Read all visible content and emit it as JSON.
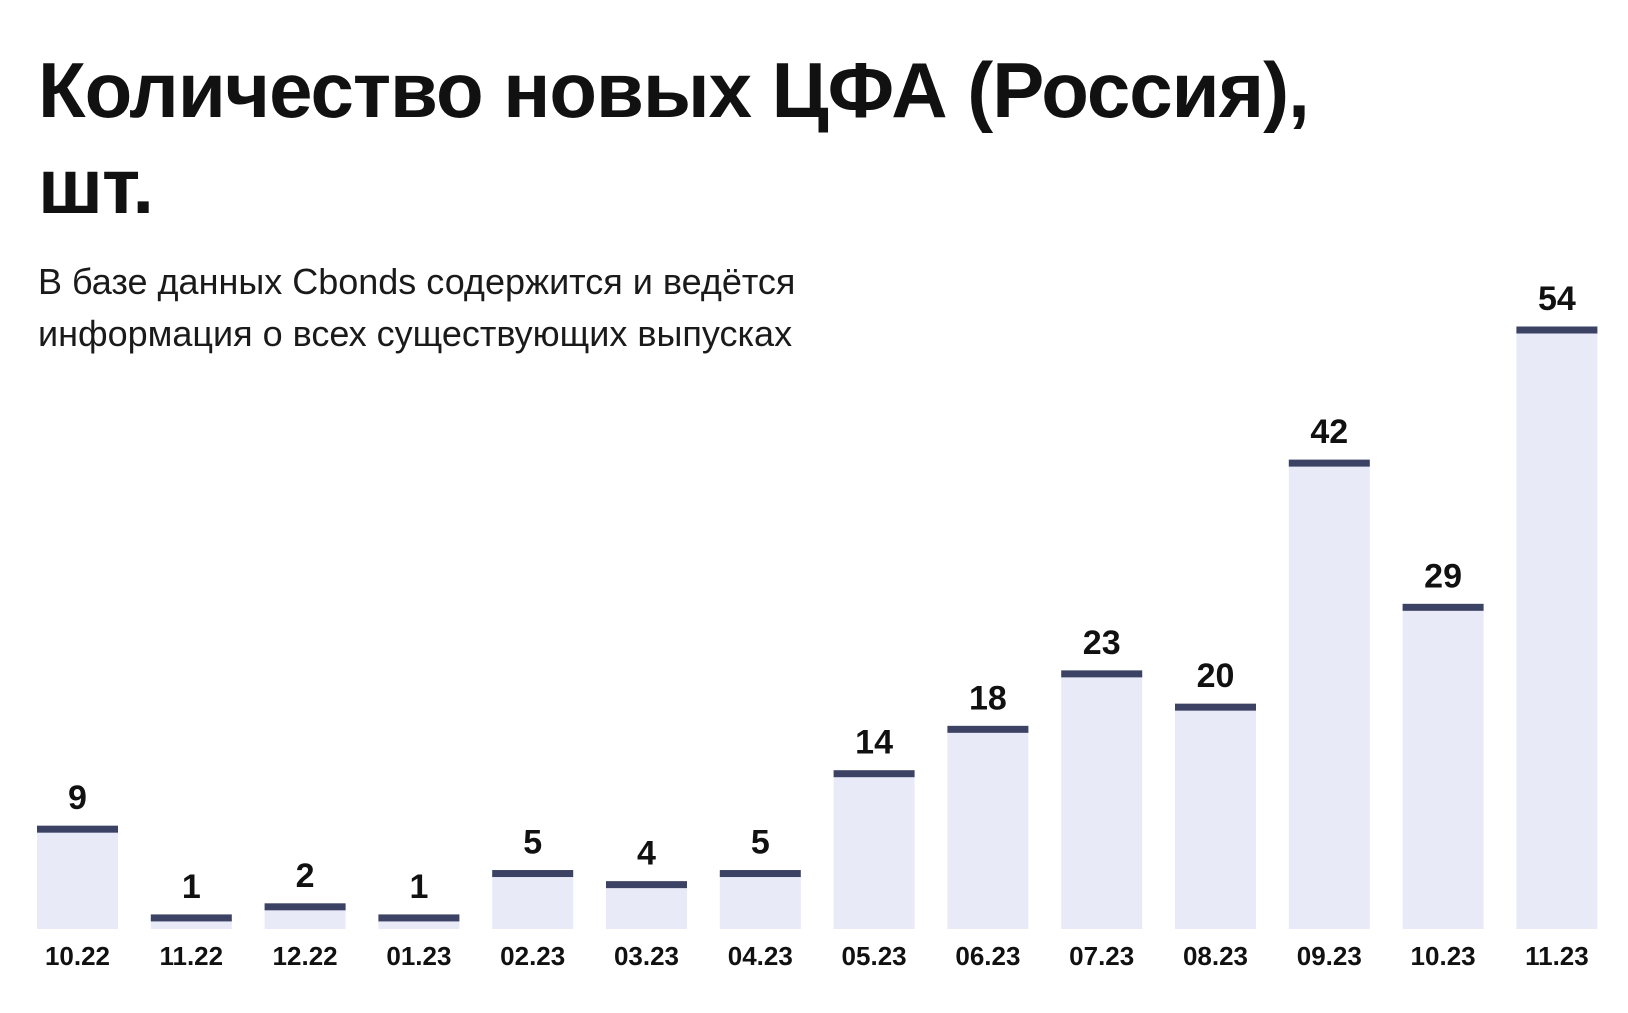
{
  "colors": {
    "bar_fill": "#e8eaf8",
    "bar_top": "#3b4263",
    "text": "#111111"
  },
  "chart_data": {
    "type": "bar",
    "title": "Количество новых ЦФА (Россия), шт.",
    "subtitle": "В базе данных Cbonds содержится и ведётся информация о всех существующих выпусках",
    "xlabel": "",
    "ylabel": "",
    "grid": false,
    "categories": [
      "10.22",
      "11.22",
      "12.22",
      "01.23",
      "02.23",
      "03.23",
      "04.23",
      "05.23",
      "06.23",
      "07.23",
      "08.23",
      "09.23",
      "10.23",
      "11.23"
    ],
    "values": [
      9,
      1,
      2,
      1,
      5,
      4,
      5,
      14,
      18,
      23,
      20,
      42,
      29,
      54
    ],
    "ylim": [
      0,
      54
    ]
  }
}
